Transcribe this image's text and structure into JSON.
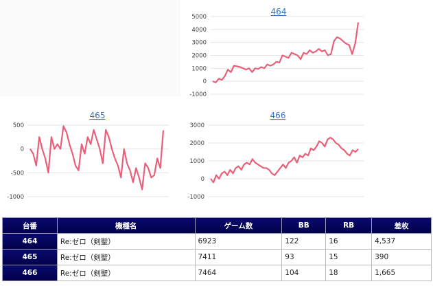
{
  "charts": [
    {
      "title": "464",
      "chart_data": {
        "type": "line",
        "title": "464",
        "ylim": [
          -1000,
          5000
        ],
        "yticks": [
          "5000",
          "4000",
          "3000",
          "2000",
          "1000",
          "0",
          "-1000"
        ],
        "tick_values": [
          5000,
          4000,
          3000,
          2000,
          1000,
          0,
          -1000
        ],
        "series": [
          {
            "values": [
              0,
              -100,
              200,
              100,
              400,
              900,
              700,
              1200,
              1150,
              1100,
              1000,
              900,
              1000,
              700,
              1000,
              950,
              1100,
              1000,
              1300,
              1200,
              1300,
              1500,
              1450,
              2000,
              1900,
              1800,
              2200,
              2100,
              2000,
              1700,
              2200,
              2100,
              2400,
              2200,
              2300,
              2500,
              2300,
              2400,
              2000,
              2100,
              3100,
              3400,
              3300,
              3100,
              2900,
              2800,
              2100,
              2900,
              4537
            ]
          }
        ],
        "color": "#e8607a"
      }
    },
    {
      "title": "465",
      "chart_data": {
        "type": "line",
        "title": "465",
        "ylim": [
          -1000,
          500
        ],
        "yticks": [
          "500",
          "0",
          "-500",
          "-1000"
        ],
        "tick_values": [
          500,
          0,
          -500,
          -1000
        ],
        "series": [
          {
            "values": [
              0,
              -100,
              -350,
              250,
              0,
              -200,
              -500,
              250,
              0,
              100,
              0,
              480,
              350,
              100,
              -100,
              -350,
              -450,
              100,
              -100,
              250,
              100,
              400,
              200,
              0,
              -300,
              400,
              250,
              0,
              -200,
              -350,
              -600,
              0,
              -300,
              -450,
              -700,
              -400,
              -600,
              -850,
              -300,
              -400,
              -600,
              -550,
              -200,
              -400,
              390
            ]
          }
        ],
        "color": "#e8607a"
      }
    },
    {
      "title": "466",
      "chart_data": {
        "type": "line",
        "title": "466",
        "ylim": [
          -1000,
          3000
        ],
        "yticks": [
          "3000",
          "2000",
          "1000",
          "0",
          "-1000"
        ],
        "tick_values": [
          3000,
          2000,
          1000,
          0,
          -1000
        ],
        "series": [
          {
            "values": [
              0,
              -200,
              200,
              0,
              300,
              400,
              200,
              500,
              300,
              600,
              700,
              500,
              800,
              900,
              800,
              1100,
              900,
              800,
              700,
              600,
              600,
              500,
              300,
              200,
              400,
              600,
              800,
              600,
              900,
              1000,
              1200,
              900,
              1300,
              1200,
              1400,
              1300,
              1700,
              1600,
              1800,
              2100,
              2000,
              1800,
              2200,
              2300,
              2200,
              2000,
              1900,
              1700,
              1600,
              1400,
              1300,
              1600,
              1500,
              1665
            ]
          }
        ],
        "color": "#e8607a"
      }
    }
  ],
  "table": {
    "headers": [
      "台番",
      "機種名",
      "ゲーム数",
      "BB",
      "RB",
      "差枚"
    ],
    "rows": [
      [
        "464",
        "Re:ゼロ（剣聖）",
        "6923",
        "122",
        "16",
        "4,537"
      ],
      [
        "465",
        "Re:ゼロ（剣聖）",
        "7411",
        "93",
        "15",
        "390"
      ],
      [
        "466",
        "Re:ゼロ（剣聖）",
        "7464",
        "104",
        "18",
        "1,665"
      ]
    ]
  }
}
